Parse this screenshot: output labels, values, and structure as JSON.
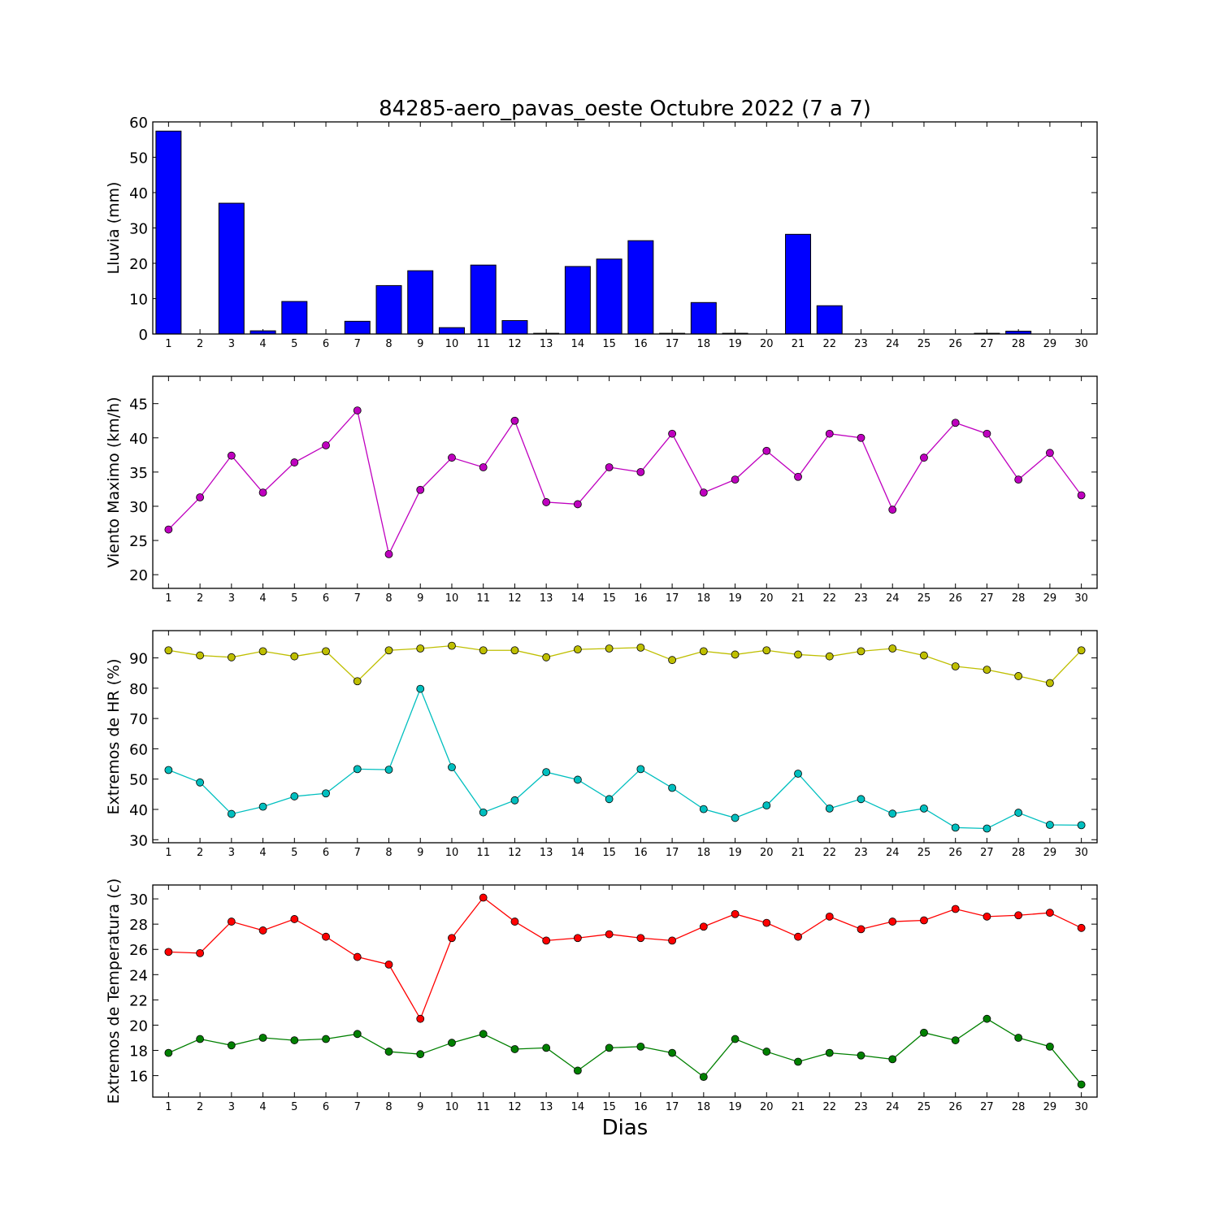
{
  "title": "84285-aero_pavas_oeste Octubre 2022  (7 a 7)",
  "xlabel": "Dias",
  "colors": {
    "rain_bar": "#0000ff",
    "wind": "#bf00bf",
    "hr_max": "#bfbf00",
    "hr_min": "#00bfbf",
    "temp_max": "#ff0000",
    "temp_min": "#008000"
  },
  "chart_data": [
    {
      "type": "bar",
      "ylabel": "Lluvia (mm)",
      "ylim": [
        0,
        60
      ],
      "yticks": [
        0,
        10,
        20,
        30,
        40,
        50,
        60
      ],
      "x": [
        1,
        2,
        3,
        4,
        5,
        6,
        7,
        8,
        9,
        10,
        11,
        12,
        13,
        14,
        15,
        16,
        17,
        18,
        19,
        20,
        21,
        22,
        23,
        24,
        25,
        26,
        27,
        28,
        29,
        30
      ],
      "series": [
        {
          "values": [
            57.4,
            0,
            37,
            0.9,
            9.2,
            0,
            3.6,
            13.7,
            17.9,
            1.8,
            19.5,
            3.8,
            0.2,
            19.1,
            21.2,
            26.4,
            0.2,
            8.9,
            0.2,
            0,
            28.2,
            8,
            0,
            0,
            0,
            0,
            0.2,
            0.8,
            0,
            0
          ]
        }
      ]
    },
    {
      "type": "line",
      "ylabel": "Viento Maximo (km/h)",
      "ylim": [
        18,
        49
      ],
      "yticks": [
        20,
        25,
        30,
        35,
        40,
        45
      ],
      "x": [
        1,
        2,
        3,
        4,
        5,
        6,
        7,
        8,
        9,
        10,
        11,
        12,
        13,
        14,
        15,
        16,
        17,
        18,
        19,
        20,
        21,
        22,
        23,
        24,
        25,
        26,
        27,
        28,
        29,
        30
      ],
      "series": [
        {
          "values": [
            26.6,
            31.3,
            37.4,
            32,
            36.4,
            38.9,
            44,
            23,
            32.4,
            37.1,
            35.7,
            42.5,
            30.6,
            30.3,
            35.7,
            35,
            40.6,
            32,
            33.9,
            38.1,
            34.3,
            40.6,
            40,
            29.5,
            37.1,
            42.2,
            40.6,
            33.9,
            37.8,
            31.6
          ]
        }
      ]
    },
    {
      "type": "line",
      "ylabel": "Extremos de HR (%)",
      "ylim": [
        29,
        99
      ],
      "yticks": [
        30,
        40,
        50,
        60,
        70,
        80,
        90
      ],
      "x": [
        1,
        2,
        3,
        4,
        5,
        6,
        7,
        8,
        9,
        10,
        11,
        12,
        13,
        14,
        15,
        16,
        17,
        18,
        19,
        20,
        21,
        22,
        23,
        24,
        25,
        26,
        27,
        28,
        29,
        30
      ],
      "series": [
        {
          "values": [
            92.5,
            90.8,
            90.2,
            92.2,
            90.5,
            92.2,
            82.3,
            92.5,
            93.1,
            94,
            92.5,
            92.5,
            90.2,
            92.8,
            93.1,
            93.4,
            89.3,
            92.2,
            91.1,
            92.5,
            91.1,
            90.5,
            92.2,
            93.1,
            90.8,
            87.2,
            86.1,
            84,
            81.7,
            92.5
          ]
        },
        {
          "values": [
            53,
            48.9,
            38.5,
            40.9,
            44.3,
            45.3,
            53.3,
            53.1,
            79.8,
            53.9,
            39,
            43,
            52.3,
            49.8,
            43.4,
            53.3,
            47.1,
            40.1,
            37.2,
            41.3,
            51.8,
            40.3,
            43.4,
            38.6,
            40.3,
            34,
            33.7,
            38.9,
            34.9,
            34.8
          ]
        }
      ]
    },
    {
      "type": "line",
      "ylabel": "Extremos de Temperatura (c)",
      "ylim": [
        14.3,
        31.1
      ],
      "yticks": [
        16,
        18,
        20,
        22,
        24,
        26,
        28,
        30
      ],
      "x": [
        1,
        2,
        3,
        4,
        5,
        6,
        7,
        8,
        9,
        10,
        11,
        12,
        13,
        14,
        15,
        16,
        17,
        18,
        19,
        20,
        21,
        22,
        23,
        24,
        25,
        26,
        27,
        28,
        29,
        30
      ],
      "series": [
        {
          "values": [
            25.8,
            25.7,
            28.2,
            27.5,
            28.4,
            27,
            25.4,
            24.8,
            20.5,
            26.9,
            30.1,
            28.2,
            26.7,
            26.9,
            27.2,
            26.9,
            26.7,
            27.8,
            28.8,
            28.1,
            27,
            28.6,
            27.6,
            28.2,
            28.3,
            29.2,
            28.6,
            28.7,
            28.9,
            27.7
          ]
        },
        {
          "values": [
            17.8,
            18.9,
            18.4,
            19,
            18.8,
            18.9,
            19.3,
            17.9,
            17.7,
            18.6,
            19.3,
            18.1,
            18.2,
            16.4,
            18.2,
            18.3,
            17.8,
            15.9,
            18.9,
            17.9,
            17.1,
            17.8,
            17.6,
            17.3,
            19.4,
            18.8,
            20.5,
            19,
            18.3,
            15.3
          ]
        }
      ]
    }
  ]
}
